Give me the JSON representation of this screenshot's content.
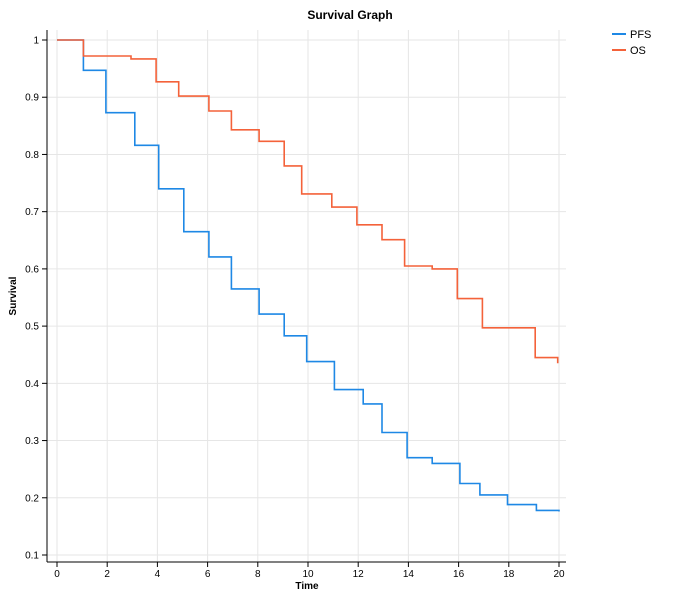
{
  "chart_data": {
    "type": "line",
    "title": "Survival Graph",
    "xlabel": "Time",
    "ylabel": "Survival",
    "xlim": [
      0,
      20
    ],
    "ylim": [
      0.1,
      1
    ],
    "xticks": [
      0,
      2,
      4,
      6,
      8,
      10,
      12,
      14,
      16,
      18,
      20
    ],
    "yticks": [
      0.1,
      0.2,
      0.3,
      0.4,
      0.5,
      0.6,
      0.7,
      0.8,
      0.9,
      1
    ],
    "grid": true,
    "legend_position": "top-right",
    "series": [
      {
        "name": "PFS",
        "color": "#1e88e5",
        "step": true,
        "x": [
          0,
          1.05,
          1.95,
          3.1,
          4.05,
          5.05,
          6.05,
          6.95,
          8.05,
          9.05,
          9.95,
          11.05,
          12.2,
          12.95,
          13.95,
          14.95,
          16.05,
          16.85,
          17.95,
          19.1,
          20
        ],
        "values": [
          1.0,
          0.947,
          0.873,
          0.816,
          0.74,
          0.665,
          0.621,
          0.565,
          0.521,
          0.483,
          0.438,
          0.389,
          0.364,
          0.314,
          0.27,
          0.26,
          0.225,
          0.205,
          0.188,
          0.178,
          0.176
        ]
      },
      {
        "name": "OS",
        "color": "#f4623a",
        "step": true,
        "x": [
          0,
          1.05,
          2.95,
          3.95,
          4.85,
          6.05,
          6.95,
          8.05,
          9.05,
          9.75,
          10.95,
          11.95,
          12.95,
          13.85,
          14.95,
          15.95,
          16.95,
          19.05,
          19.95
        ],
        "values": [
          1.0,
          0.972,
          0.967,
          0.927,
          0.902,
          0.876,
          0.843,
          0.823,
          0.78,
          0.731,
          0.708,
          0.677,
          0.651,
          0.605,
          0.6,
          0.548,
          0.497,
          0.445,
          0.435
        ]
      }
    ]
  }
}
